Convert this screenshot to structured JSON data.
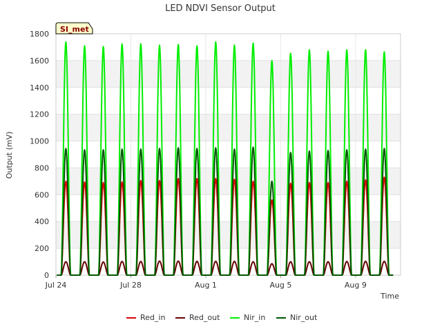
{
  "chart_data": {
    "type": "line",
    "title": "LED NDVI Sensor Output",
    "xlabel": "Time",
    "ylabel": "Output (mV)",
    "annotation_tag": "SI_met",
    "x_start": "2024-07-24",
    "x_end": "2024-08-11",
    "xlim_days": [
      0,
      18.4
    ],
    "ylim": [
      0,
      1800
    ],
    "y_ticks": [
      0,
      200,
      400,
      600,
      800,
      1000,
      1200,
      1400,
      1600,
      1800
    ],
    "x_ticks": [
      {
        "day": 0,
        "label": "Jul 24"
      },
      {
        "day": 4,
        "label": "Jul 28"
      },
      {
        "day": 8,
        "label": "Aug 1"
      },
      {
        "day": 12,
        "label": "Aug 5"
      },
      {
        "day": 16,
        "label": "Aug 9"
      }
    ],
    "grid": true,
    "legend_position": "bottom",
    "days": [
      "Jul 24",
      "Jul 25",
      "Jul 26",
      "Jul 27",
      "Jul 28",
      "Jul 29",
      "Jul 30",
      "Jul 31",
      "Aug 1",
      "Aug 2",
      "Aug 3",
      "Aug 4",
      "Aug 5",
      "Aug 6",
      "Aug 7",
      "Aug 8",
      "Aug 9",
      "Aug 10"
    ],
    "series": [
      {
        "name": "Red_in",
        "color": "#dd0000",
        "daily_peak": [
          700,
          695,
          690,
          695,
          705,
          705,
          720,
          720,
          720,
          715,
          700,
          560,
          685,
          690,
          690,
          700,
          710,
          730
        ]
      },
      {
        "name": "Red_out",
        "color": "#660000",
        "daily_peak": [
          100,
          100,
          98,
          102,
          102,
          105,
          105,
          103,
          103,
          103,
          100,
          85,
          100,
          100,
          100,
          102,
          103,
          103
        ]
      },
      {
        "name": "Nir_in",
        "color": "#00ee00",
        "daily_peak": [
          1740,
          1710,
          1705,
          1725,
          1725,
          1715,
          1720,
          1710,
          1740,
          1715,
          1730,
          1600,
          1655,
          1680,
          1670,
          1680,
          1680,
          1665
        ]
      },
      {
        "name": "Nir_out",
        "color": "#005500",
        "daily_peak": [
          945,
          935,
          935,
          940,
          940,
          945,
          950,
          945,
          950,
          940,
          955,
          700,
          915,
          925,
          930,
          935,
          940,
          945
        ]
      }
    ]
  }
}
